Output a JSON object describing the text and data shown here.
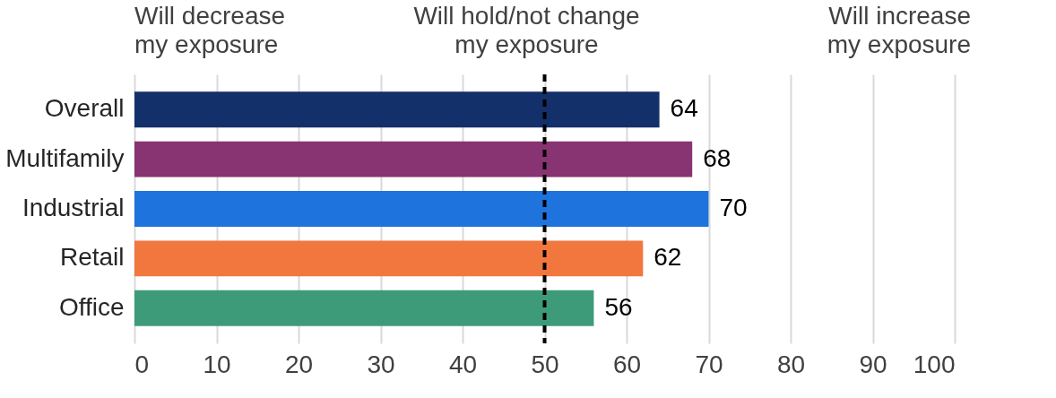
{
  "chart_data": {
    "type": "bar",
    "orientation": "horizontal",
    "categories": [
      "Overall",
      "Multifamily",
      "Industrial",
      "Retail",
      "Office"
    ],
    "values": [
      64,
      68,
      70,
      62,
      56
    ],
    "colors": [
      "#14306a",
      "#883372",
      "#1e73dd",
      "#f2773e",
      "#3e9b79"
    ],
    "data_labels": true,
    "xlim": [
      0,
      100
    ],
    "xticks": [
      0,
      10,
      20,
      30,
      40,
      50,
      60,
      70,
      80,
      90,
      100
    ],
    "grid": "x",
    "ref_lines": [
      {
        "axis": "x",
        "value": 50,
        "color": "#000000",
        "line_style": "dashed"
      }
    ],
    "annotations": [
      "Will decrease\nmy exposure",
      "Will hold/not change\nmy exposure",
      "Will increase\nmy exposure"
    ]
  }
}
